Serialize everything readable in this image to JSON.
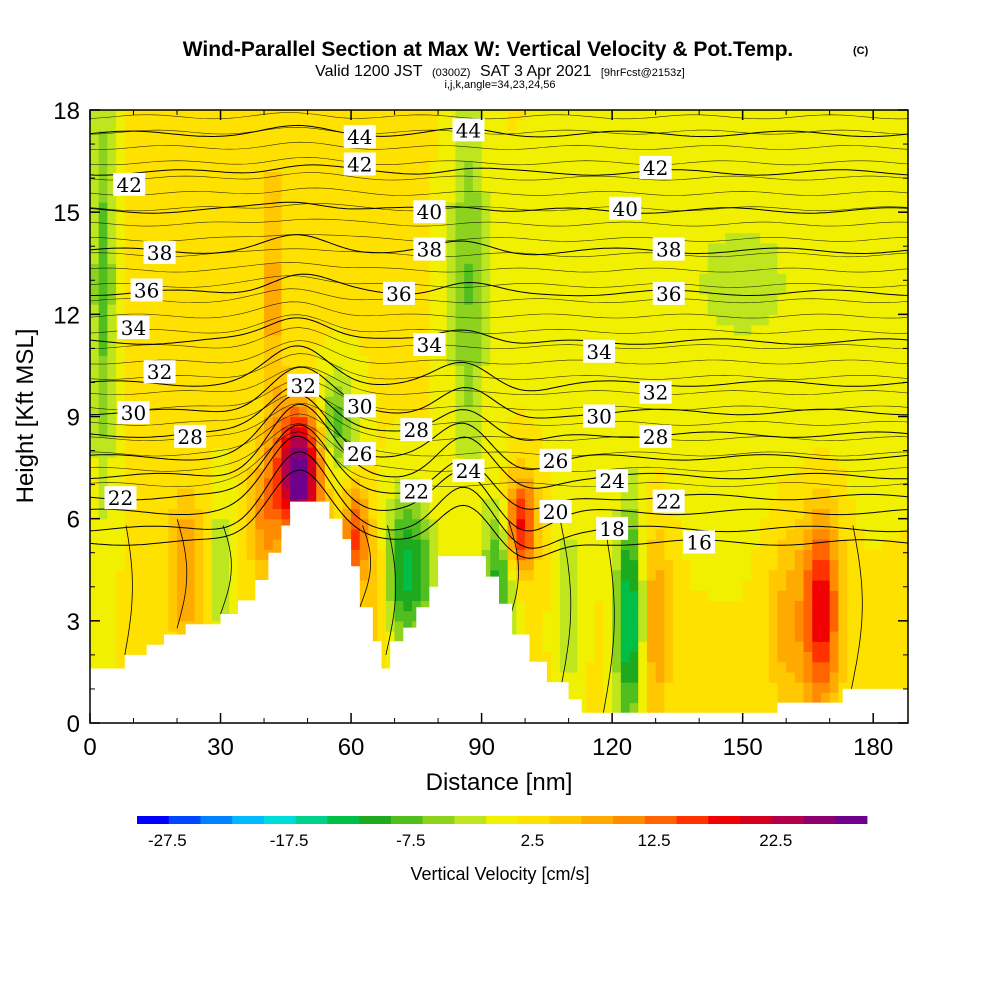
{
  "title": {
    "main": "Wind-Parallel Section at Max W: Vertical Velocity & Pot.Temp.",
    "mark": "(C)",
    "valid_prefix": "Valid 1200 JST",
    "valid_utc": "(0300Z)",
    "valid_date": "SAT 3 Apr 2021",
    "forecast": "[9hrFcst@2153z]",
    "params": "i,j,k,angle=34,23,24,56"
  },
  "chart_data": {
    "type": "heatmap",
    "xlabel": "Distance [nm]",
    "ylabel": "Height [Kft MSL]",
    "xlim": [
      0,
      188
    ],
    "ylim": [
      0,
      18
    ],
    "x_ticks": [
      0,
      30,
      60,
      90,
      120,
      150,
      180
    ],
    "y_ticks": [
      0,
      3,
      6,
      9,
      12,
      15,
      18
    ],
    "colorbar": {
      "label": "Vertical Velocity [cm/s]",
      "range": [
        -30,
        30
      ],
      "tick_values": [
        -27.5,
        -17.5,
        -7.5,
        2.5,
        12.5,
        22.5
      ],
      "tick_labels": [
        "-27.5",
        "-17.5",
        "-7.5",
        "2.5",
        "12.5",
        "22.5"
      ],
      "colors": [
        "#0000ff",
        "#0046ff",
        "#0082ff",
        "#00b9ff",
        "#00dcdc",
        "#00d28c",
        "#00be46",
        "#1eaa1e",
        "#50be1e",
        "#8cd21e",
        "#bee61e",
        "#f0f000",
        "#ffe100",
        "#ffc800",
        "#ffaa00",
        "#ff8c00",
        "#ff6400",
        "#ff3200",
        "#f00000",
        "#d2001e",
        "#b4004b",
        "#8c006e",
        "#6e008c"
      ]
    },
    "terrain": [
      {
        "x": 0,
        "h": 1.6
      },
      {
        "x": 6,
        "h": 1.6
      },
      {
        "x": 8,
        "h": 2.0
      },
      {
        "x": 13,
        "h": 2.3
      },
      {
        "x": 17,
        "h": 2.6
      },
      {
        "x": 22,
        "h": 2.9
      },
      {
        "x": 30,
        "h": 3.2
      },
      {
        "x": 34,
        "h": 3.6
      },
      {
        "x": 38,
        "h": 4.2
      },
      {
        "x": 41,
        "h": 5.0
      },
      {
        "x": 44,
        "h": 5.8
      },
      {
        "x": 46,
        "h": 6.5
      },
      {
        "x": 52,
        "h": 6.5
      },
      {
        "x": 55,
        "h": 6.0
      },
      {
        "x": 58,
        "h": 5.4
      },
      {
        "x": 60,
        "h": 4.6
      },
      {
        "x": 62,
        "h": 3.4
      },
      {
        "x": 65,
        "h": 2.4
      },
      {
        "x": 67,
        "h": 1.6
      },
      {
        "x": 69,
        "h": 2.4
      },
      {
        "x": 72,
        "h": 2.8
      },
      {
        "x": 75,
        "h": 3.4
      },
      {
        "x": 78,
        "h": 4.0
      },
      {
        "x": 80,
        "h": 4.9
      },
      {
        "x": 88,
        "h": 4.9
      },
      {
        "x": 91,
        "h": 4.3
      },
      {
        "x": 94,
        "h": 3.5
      },
      {
        "x": 97,
        "h": 2.6
      },
      {
        "x": 101,
        "h": 1.8
      },
      {
        "x": 105,
        "h": 1.2
      },
      {
        "x": 110,
        "h": 0.7
      },
      {
        "x": 113,
        "h": 0.3
      },
      {
        "x": 118,
        "h": 0.3
      },
      {
        "x": 156,
        "h": 0.3
      },
      {
        "x": 158,
        "h": 0.6
      },
      {
        "x": 172,
        "h": 0.6
      },
      {
        "x": 173,
        "h": 1.0
      },
      {
        "x": 188,
        "h": 1.0
      }
    ],
    "velocity_features": [
      {
        "x": 48,
        "z": 7.3,
        "sx": 3.5,
        "sz": 1.3,
        "w": 30
      },
      {
        "x": 40,
        "z": 6.0,
        "sx": 2.5,
        "sz": 1.3,
        "w": 8
      },
      {
        "x": 22,
        "z": 4.5,
        "sx": 3.0,
        "sz": 1.6,
        "w": 8
      },
      {
        "x": 30,
        "z": 4.5,
        "sx": 2.0,
        "sz": 1.4,
        "w": -6
      },
      {
        "x": 57,
        "z": 8.8,
        "sx": 3.0,
        "sz": 1.0,
        "w": -10
      },
      {
        "x": 61,
        "z": 5.4,
        "sx": 2.0,
        "sz": 1.0,
        "w": 14
      },
      {
        "x": 73,
        "z": 4.5,
        "sx": 4.0,
        "sz": 1.5,
        "w": -15
      },
      {
        "x": 66,
        "z": 4.0,
        "sx": 2.0,
        "sz": 1.5,
        "w": 6
      },
      {
        "x": 94,
        "z": 4.3,
        "sx": 2.5,
        "sz": 1.5,
        "w": -12
      },
      {
        "x": 99,
        "z": 5.8,
        "sx": 2.5,
        "sz": 1.0,
        "w": 17
      },
      {
        "x": 124,
        "z": 3.0,
        "sx": 2.2,
        "sz": 2.3,
        "w": -17
      },
      {
        "x": 130,
        "z": 3.0,
        "sx": 2.5,
        "sz": 2.0,
        "w": 8
      },
      {
        "x": 110,
        "z": 3.4,
        "sx": 2.0,
        "sz": 2.0,
        "w": -5
      },
      {
        "x": 168,
        "z": 3.3,
        "sx": 3.0,
        "sz": 2.0,
        "w": 18
      },
      {
        "x": 160,
        "z": 3.0,
        "sx": 3.0,
        "sz": 2.0,
        "w": 6
      },
      {
        "x": 3,
        "z": 13.0,
        "sx": 2.0,
        "sz": 4.5,
        "w": -9
      },
      {
        "x": 87,
        "z": 13.0,
        "sx": 3.0,
        "sz": 4.0,
        "w": -8
      },
      {
        "x": 42,
        "z": 12.5,
        "sx": 2.0,
        "sz": 3.0,
        "w": 6
      },
      {
        "x": 150,
        "z": 13.0,
        "sx": 25.0,
        "sz": 4.0,
        "w": -3
      }
    ],
    "contour_labels": [
      {
        "text": "44",
        "x": 62,
        "z": 17.2
      },
      {
        "text": "44",
        "x": 87,
        "z": 17.4
      },
      {
        "text": "42",
        "x": 9,
        "z": 15.8
      },
      {
        "text": "42",
        "x": 62,
        "z": 16.4
      },
      {
        "text": "42",
        "x": 130,
        "z": 16.3
      },
      {
        "text": "40",
        "x": 78,
        "z": 15.0
      },
      {
        "text": "40",
        "x": 123,
        "z": 15.1
      },
      {
        "text": "38",
        "x": 16,
        "z": 13.8
      },
      {
        "text": "38",
        "x": 78,
        "z": 13.9
      },
      {
        "text": "38",
        "x": 133,
        "z": 13.9
      },
      {
        "text": "36",
        "x": 13,
        "z": 12.7
      },
      {
        "text": "36",
        "x": 71,
        "z": 12.6
      },
      {
        "text": "36",
        "x": 133,
        "z": 12.6
      },
      {
        "text": "34",
        "x": 10,
        "z": 11.6
      },
      {
        "text": "34",
        "x": 78,
        "z": 11.1
      },
      {
        "text": "34",
        "x": 117,
        "z": 10.9
      },
      {
        "text": "32",
        "x": 16,
        "z": 10.3
      },
      {
        "text": "32",
        "x": 49,
        "z": 9.9
      },
      {
        "text": "32",
        "x": 130,
        "z": 9.7
      },
      {
        "text": "30",
        "x": 10,
        "z": 9.1
      },
      {
        "text": "30",
        "x": 62,
        "z": 9.3
      },
      {
        "text": "30",
        "x": 117,
        "z": 9.0
      },
      {
        "text": "28",
        "x": 23,
        "z": 8.4
      },
      {
        "text": "28",
        "x": 75,
        "z": 8.6
      },
      {
        "text": "28",
        "x": 130,
        "z": 8.4
      },
      {
        "text": "26",
        "x": 62,
        "z": 7.9
      },
      {
        "text": "26",
        "x": 107,
        "z": 7.7
      },
      {
        "text": "24",
        "x": 87,
        "z": 7.4
      },
      {
        "text": "24",
        "x": 120,
        "z": 7.1
      },
      {
        "text": "22",
        "x": 7,
        "z": 6.6
      },
      {
        "text": "22",
        "x": 75,
        "z": 6.8
      },
      {
        "text": "22",
        "x": 133,
        "z": 6.5
      },
      {
        "text": "20",
        "x": 107,
        "z": 6.2
      },
      {
        "text": "18",
        "x": 120,
        "z": 5.7
      },
      {
        "text": "16",
        "x": 140,
        "z": 5.3
      }
    ]
  }
}
